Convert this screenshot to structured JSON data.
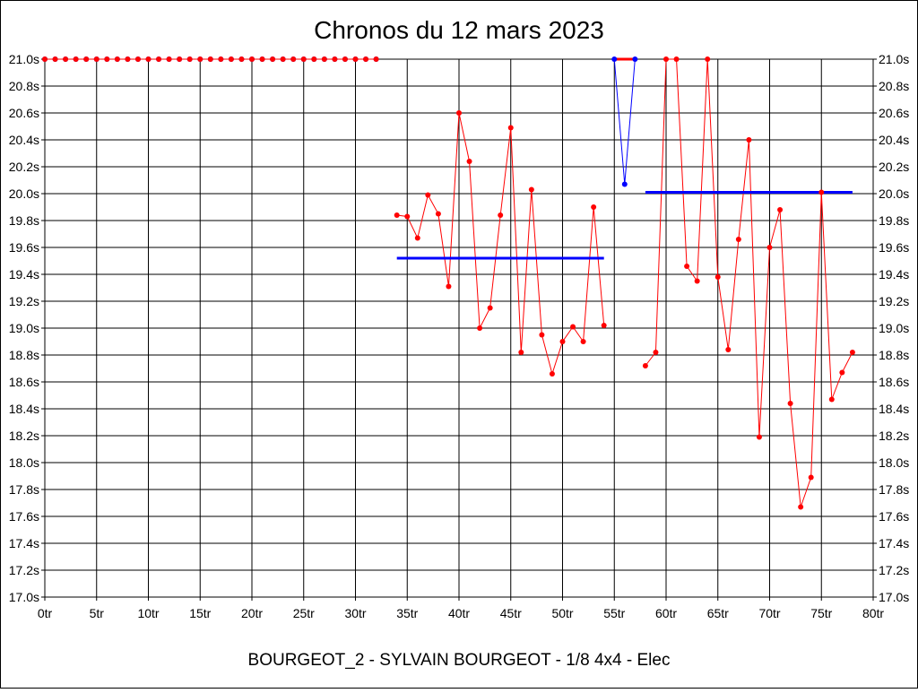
{
  "chart_data": {
    "type": "line",
    "title": "Chronos du 12 mars 2023",
    "footer": "BOURGEOT_2 - SYLVAIN BOURGEOT - 1/8 4x4 - Elec",
    "xlim": [
      0,
      80
    ],
    "ylim": [
      17.0,
      21.0
    ],
    "x_ticks": [
      {
        "v": 0,
        "label": "0tr"
      },
      {
        "v": 5,
        "label": "5tr"
      },
      {
        "v": 10,
        "label": "10tr"
      },
      {
        "v": 15,
        "label": "15tr"
      },
      {
        "v": 20,
        "label": "20tr"
      },
      {
        "v": 25,
        "label": "25tr"
      },
      {
        "v": 30,
        "label": "30tr"
      },
      {
        "v": 35,
        "label": "35tr"
      },
      {
        "v": 40,
        "label": "40tr"
      },
      {
        "v": 45,
        "label": "45tr"
      },
      {
        "v": 50,
        "label": "50tr"
      },
      {
        "v": 55,
        "label": "55tr"
      },
      {
        "v": 60,
        "label": "60tr"
      },
      {
        "v": 65,
        "label": "65tr"
      },
      {
        "v": 70,
        "label": "70tr"
      },
      {
        "v": 75,
        "label": "75tr"
      },
      {
        "v": 80,
        "label": "80tr"
      }
    ],
    "y_ticks": [
      {
        "v": 17.0,
        "label": "17.0s"
      },
      {
        "v": 17.2,
        "label": "17.2s"
      },
      {
        "v": 17.4,
        "label": "17.4s"
      },
      {
        "v": 17.6,
        "label": "17.6s"
      },
      {
        "v": 17.8,
        "label": "17.8s"
      },
      {
        "v": 18.0,
        "label": "18.0s"
      },
      {
        "v": 18.2,
        "label": "18.2s"
      },
      {
        "v": 18.4,
        "label": "18.4s"
      },
      {
        "v": 18.6,
        "label": "18.6s"
      },
      {
        "v": 18.8,
        "label": "18.8s"
      },
      {
        "v": 19.0,
        "label": "19.0s"
      },
      {
        "v": 19.2,
        "label": "19.2s"
      },
      {
        "v": 19.4,
        "label": "19.4s"
      },
      {
        "v": 19.6,
        "label": "19.6s"
      },
      {
        "v": 19.8,
        "label": "19.8s"
      },
      {
        "v": 20.0,
        "label": "20.0s"
      },
      {
        "v": 20.2,
        "label": "20.2s"
      },
      {
        "v": 20.4,
        "label": "20.4s"
      },
      {
        "v": 20.6,
        "label": "20.6s"
      },
      {
        "v": 20.8,
        "label": "20.8s"
      },
      {
        "v": 21.0,
        "label": "21.0s"
      }
    ],
    "grid": true,
    "series": [
      {
        "color": "#0000ff",
        "x": [
          0,
          1,
          2,
          3,
          4,
          5,
          6,
          7,
          8,
          9,
          10,
          11,
          12,
          13,
          14,
          15,
          16,
          17,
          18,
          19,
          20,
          21,
          22,
          23,
          24,
          25,
          26,
          27,
          28,
          29,
          30,
          31,
          32
        ],
        "y": [
          21.0,
          21.0,
          21.0,
          21.0,
          21.0,
          21.0,
          21.0,
          21.0,
          21.0,
          21.0,
          21.0,
          21.0,
          21.0,
          21.0,
          21.0,
          21.0,
          21.0,
          21.0,
          21.0,
          21.0,
          21.0,
          21.0,
          21.0,
          21.0,
          21.0,
          21.0,
          21.0,
          21.0,
          21.0,
          21.0,
          21.0,
          21.0,
          21.0
        ]
      },
      {
        "color": "#ff0000",
        "x": [
          0,
          1,
          2,
          3,
          4,
          5,
          6,
          7,
          8,
          9,
          10,
          11,
          12,
          13,
          14,
          15,
          16,
          17,
          18,
          19,
          20,
          21,
          22,
          23,
          24,
          25,
          26,
          27,
          28,
          29,
          30,
          31,
          32
        ],
        "y": [
          21.0,
          21.0,
          21.0,
          21.0,
          21.0,
          21.0,
          21.0,
          21.0,
          21.0,
          21.0,
          21.0,
          21.0,
          21.0,
          21.0,
          21.0,
          21.0,
          21.0,
          21.0,
          21.0,
          21.0,
          21.0,
          21.0,
          21.0,
          21.0,
          21.0,
          21.0,
          21.0,
          21.0,
          21.0,
          21.0,
          21.0,
          21.0,
          21.0
        ]
      },
      {
        "color": "#ff0000",
        "x": [
          34,
          35,
          36,
          37,
          38,
          39,
          40,
          41,
          42,
          43,
          44,
          45,
          46,
          47,
          48,
          49,
          50,
          51,
          52,
          53,
          54
        ],
        "y": [
          19.84,
          19.83,
          19.67,
          19.99,
          19.85,
          19.31,
          20.6,
          20.24,
          19.0,
          19.15,
          19.84,
          20.49,
          18.82,
          20.03,
          18.95,
          18.66,
          18.9,
          19.01,
          18.9,
          19.9,
          19.02
        ]
      },
      {
        "color": "#0000ff",
        "x": [
          55,
          56,
          57
        ],
        "y": [
          21.0,
          20.07,
          21.0
        ]
      },
      {
        "color": "#ff0000",
        "x": [
          58,
          59,
          60,
          61,
          62,
          63,
          64,
          65,
          66,
          67,
          68,
          69,
          70,
          71,
          72,
          73,
          74,
          75,
          76,
          77,
          78
        ],
        "y": [
          18.72,
          18.82,
          21.0,
          21.0,
          19.46,
          19.35,
          21.0,
          19.38,
          18.84,
          19.66,
          20.4,
          18.19,
          19.6,
          19.88,
          18.44,
          17.67,
          17.89,
          20.01,
          18.47,
          18.67,
          18.82
        ]
      }
    ],
    "red_segments": [
      {
        "x": [
          55,
          57
        ],
        "y": [
          21.0,
          21.0
        ]
      }
    ],
    "average_lines": [
      {
        "color": "#0000ff",
        "x": [
          34,
          54
        ],
        "y": 19.52
      },
      {
        "color": "#0000ff",
        "x": [
          58,
          78
        ],
        "y": 20.01
      }
    ]
  }
}
